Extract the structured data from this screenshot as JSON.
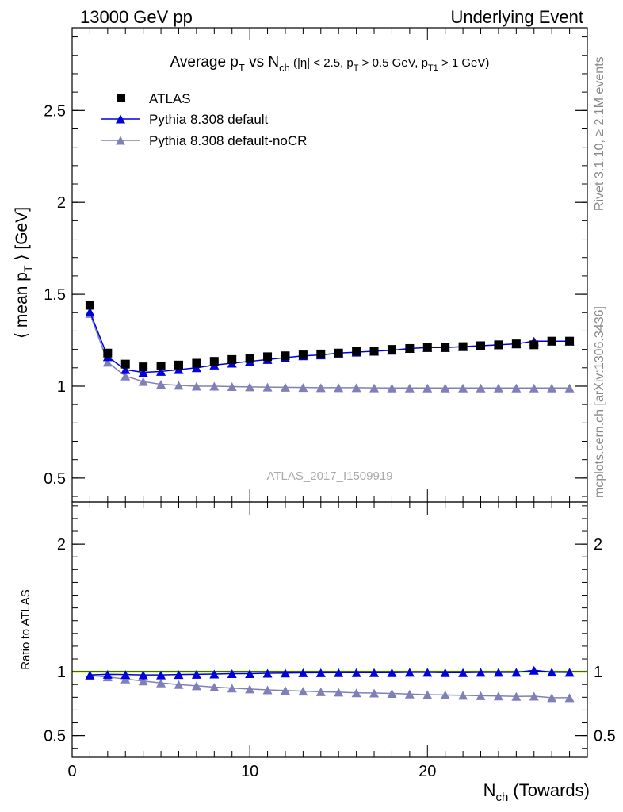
{
  "header": {
    "left": "13000 GeV pp",
    "right": "Underlying Event"
  },
  "side_labels": {
    "rivet": "Rivet 3.1.10, ≥ 2.1M events",
    "mcplots": "mcplots.cern.ch [arXiv:1306.3436]"
  },
  "watermark": "ATLAS_2017_I1509919",
  "colors": {
    "atlas": "#000000",
    "default": "#0000dd",
    "nocr": "#8080b8",
    "band": "#ccff66",
    "frame": "#000000"
  },
  "chart_data": [
    {
      "type": "scatter",
      "panel": "main",
      "title": "Average pT vs Nch (|η| < 2.5, pT > 0.5 GeV, pT1 > 1 GeV)",
      "title_parts": {
        "lead": "Average p",
        "sub1": "T",
        "mid": " vs N",
        "sub2": "ch",
        "cut_open": " (|η| < 2.5, p",
        "sub3": "T",
        "cut_mid": " > 0.5 GeV, p",
        "sub4": "T1",
        "cut_close": " > 1 GeV)"
      },
      "ylabel": "⟨ mean pT ⟩ [GeV]",
      "ylabel_parts": {
        "lead": "⟨ mean p",
        "sub": "T",
        "tail": " ⟩ [GeV]"
      },
      "xlim": [
        0,
        29
      ],
      "ylim": [
        0.37,
        2.95
      ],
      "yticks": [
        0.5,
        1,
        1.5,
        2,
        2.5
      ],
      "ytick_labels": [
        "0.5",
        "1",
        "1.5",
        "2",
        "2.5"
      ],
      "legend_position": "top-left",
      "x": [
        1,
        2,
        3,
        4,
        5,
        6,
        7,
        8,
        9,
        10,
        11,
        12,
        13,
        14,
        15,
        16,
        17,
        18,
        19,
        20,
        21,
        22,
        23,
        24,
        25,
        26,
        27,
        28
      ],
      "series": [
        {
          "name": "ATLAS",
          "marker": "square",
          "values": [
            1.44,
            1.18,
            1.12,
            1.105,
            1.11,
            1.115,
            1.125,
            1.135,
            1.145,
            1.15,
            1.16,
            1.165,
            1.17,
            1.175,
            1.18,
            1.19,
            1.19,
            1.2,
            1.205,
            1.21,
            1.21,
            1.215,
            1.22,
            1.225,
            1.23,
            1.225,
            1.245,
            1.245
          ]
        },
        {
          "name": "Pythia 8.308 default",
          "marker": "triangle",
          "values": [
            1.405,
            1.16,
            1.09,
            1.075,
            1.08,
            1.09,
            1.1,
            1.115,
            1.125,
            1.135,
            1.145,
            1.155,
            1.165,
            1.17,
            1.18,
            1.185,
            1.19,
            1.195,
            1.205,
            1.21,
            1.21,
            1.215,
            1.22,
            1.225,
            1.23,
            1.245,
            1.245,
            1.245
          ]
        },
        {
          "name": "Pythia 8.308 default-noCR",
          "marker": "triangle",
          "values": [
            1.395,
            1.13,
            1.055,
            1.025,
            1.01,
            1.005,
            1.0,
            1.0,
            0.998,
            0.996,
            0.995,
            0.994,
            0.993,
            0.992,
            0.992,
            0.992,
            0.991,
            0.99,
            0.99,
            0.99,
            0.99,
            0.99,
            0.99,
            0.99,
            0.99,
            0.99,
            0.99,
            0.99
          ]
        }
      ]
    },
    {
      "type": "scatter",
      "panel": "ratio",
      "ylabel": "Ratio to ATLAS",
      "xlabel": "Nch (Towards)",
      "xlabel_parts": {
        "lead": "N",
        "sub": "ch",
        "tail": " (Towards)"
      },
      "xlim": [
        0,
        29
      ],
      "ylim": [
        0.33,
        2.33
      ],
      "xticks": [
        0,
        10,
        20
      ],
      "xtick_labels": [
        "0",
        "10",
        "20"
      ],
      "yticks": [
        0.5,
        1,
        2
      ],
      "ytick_labels": [
        "0.5",
        "1",
        "2"
      ],
      "reference_band": {
        "low": 0.99,
        "high": 1.01
      },
      "x": [
        1,
        2,
        3,
        4,
        5,
        6,
        7,
        8,
        9,
        10,
        11,
        12,
        13,
        14,
        15,
        16,
        17,
        18,
        19,
        20,
        21,
        22,
        23,
        24,
        25,
        26,
        27,
        28
      ],
      "series": [
        {
          "name": "Pythia 8.308 default",
          "values": [
            0.975,
            0.98,
            0.978,
            0.975,
            0.975,
            0.978,
            0.98,
            0.982,
            0.985,
            0.985,
            0.988,
            0.99,
            0.992,
            0.992,
            0.993,
            0.993,
            0.993,
            0.993,
            0.995,
            0.995,
            0.993,
            0.993,
            0.995,
            0.995,
            0.995,
            1.012,
            0.997,
            0.995
          ]
        },
        {
          "name": "Pythia 8.308 default-noCR",
          "values": [
            0.97,
            0.96,
            0.943,
            0.928,
            0.912,
            0.9,
            0.89,
            0.88,
            0.872,
            0.865,
            0.858,
            0.853,
            0.848,
            0.843,
            0.84,
            0.835,
            0.833,
            0.83,
            0.825,
            0.82,
            0.818,
            0.815,
            0.812,
            0.81,
            0.807,
            0.808,
            0.797,
            0.797
          ]
        }
      ]
    }
  ]
}
